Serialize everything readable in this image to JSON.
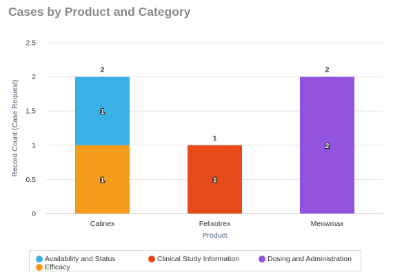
{
  "title": "Cases by Product and Category",
  "chart_data": {
    "type": "bar",
    "stacked": true,
    "title": "Cases by Product and Category",
    "xlabel": "Product",
    "ylabel": "Record Count (Case Request)",
    "ylim": [
      0,
      2.5
    ],
    "yticks": [
      "0",
      "0.5",
      "1",
      "1.5",
      "2",
      "2.5"
    ],
    "grid": true,
    "legend_position": "bottom",
    "categories": [
      "Catinex",
      "Felixotrex",
      "Meowmax"
    ],
    "totals": [
      2,
      1,
      2
    ],
    "series": [
      {
        "name": "Efficacy",
        "color": "#f59a1b",
        "values": [
          1,
          0,
          0
        ]
      },
      {
        "name": "Availability and Status",
        "color": "#39b0e6",
        "values": [
          1,
          0,
          0
        ]
      },
      {
        "name": "Clinical Study Information",
        "color": "#e64a19",
        "values": [
          0,
          1,
          0
        ]
      },
      {
        "name": "Dosing and Administration",
        "color": "#9254de",
        "values": [
          0,
          0,
          2
        ]
      }
    ]
  },
  "legend": [
    {
      "label": "Availability and Status",
      "color": "#39b0e6"
    },
    {
      "label": "Clinical Study Information",
      "color": "#e64a19"
    },
    {
      "label": "Dosing and Administration",
      "color": "#9254de"
    },
    {
      "label": "Efficacy",
      "color": "#f59a1b"
    }
  ]
}
